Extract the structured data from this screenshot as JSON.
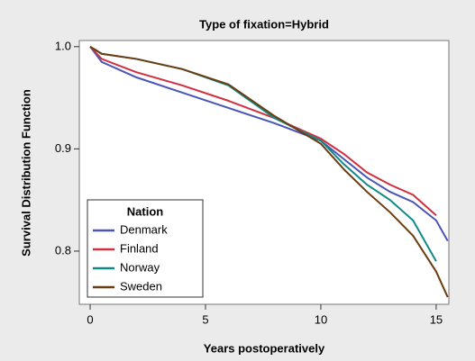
{
  "chart_data": {
    "type": "line",
    "title": "Type of fixation=Hybrid",
    "xlabel": "Years postoperatively",
    "ylabel": "Survival Distribution Function",
    "legend_title": "Nation",
    "legend": "lower left",
    "x": [
      0,
      0.5,
      2,
      4,
      6,
      8,
      10,
      11,
      12,
      13,
      14,
      15,
      15.5
    ],
    "series": [
      {
        "name": "Denmark",
        "color": "#4a55b8",
        "values": [
          1.0,
          0.985,
          0.97,
          0.955,
          0.94,
          0.925,
          0.908,
          0.89,
          0.872,
          0.858,
          0.848,
          0.83,
          0.81
        ]
      },
      {
        "name": "Finland",
        "color": "#d0303f",
        "values": [
          1.0,
          0.988,
          0.975,
          0.962,
          0.947,
          0.93,
          0.91,
          0.895,
          0.877,
          0.865,
          0.855,
          0.835,
          null
        ]
      },
      {
        "name": "Norway",
        "color": "#108a84",
        "values": [
          1.0,
          0.993,
          0.988,
          0.978,
          0.962,
          0.93,
          0.908,
          0.885,
          0.865,
          0.85,
          0.83,
          0.79,
          null
        ]
      },
      {
        "name": "Sweden",
        "color": "#6b3d10",
        "values": [
          1.0,
          0.993,
          0.988,
          0.978,
          0.963,
          0.932,
          0.905,
          0.88,
          0.858,
          0.838,
          0.815,
          0.78,
          0.755
        ]
      }
    ],
    "xlim": [
      -0.47,
      15.55
    ],
    "xticks": [
      0,
      5,
      10,
      15
    ],
    "ylim": [
      0.748,
      1.006
    ],
    "yticks": [
      0.8,
      0.9,
      {
        "value": 1,
        "label": "1.0"
      }
    ]
  }
}
